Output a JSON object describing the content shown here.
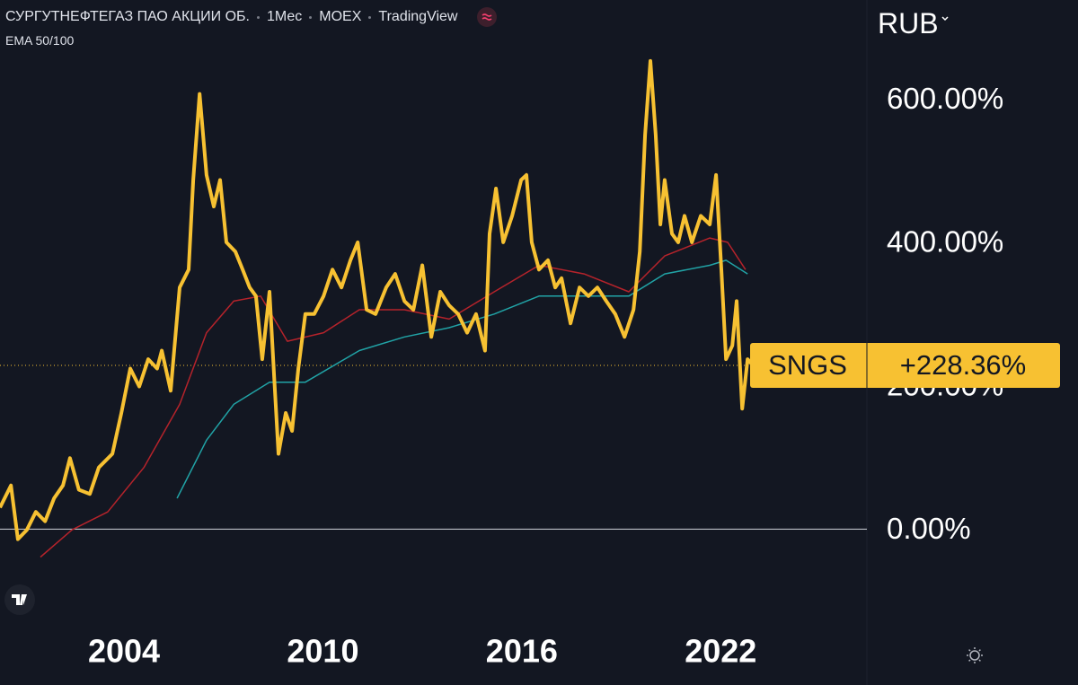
{
  "chart_data": {
    "type": "line",
    "title": "СУРГУТНЕФТЕГАЗ ПАО АКЦИИ ОБ.",
    "interval": "1Мес",
    "exchange": "MOEX",
    "source": "TradingView",
    "indicator": "EMA 50/100",
    "currency": "RUB",
    "xlim": [
      2000.26,
      2026.41
    ],
    "xticks": [
      2004,
      2010,
      2016,
      2022
    ],
    "ylim": [
      -126,
      738
    ],
    "yticks": [
      {
        "value": 0,
        "label": "0.00%"
      },
      {
        "value": 200,
        "label": "200.00%"
      },
      {
        "value": 400,
        "label": "400.00%"
      },
      {
        "value": 600,
        "label": "600.00%"
      }
    ],
    "grid": false,
    "series": [
      {
        "name": "SNGS",
        "color": "#f7c132",
        "width": 4,
        "x": [
          2000.26,
          2000.59,
          2000.8,
          2001.07,
          2001.34,
          2001.62,
          2001.89,
          2002.16,
          2002.37,
          2002.64,
          2002.97,
          2003.24,
          2003.65,
          2003.92,
          2004.19,
          2004.46,
          2004.73,
          2005.0,
          2005.14,
          2005.41,
          2005.68,
          2005.95,
          2006.09,
          2006.28,
          2006.49,
          2006.71,
          2006.9,
          2007.09,
          2007.36,
          2007.58,
          2007.79,
          2007.98,
          2008.17,
          2008.39,
          2008.53,
          2008.66,
          2008.88,
          2009.07,
          2009.26,
          2009.47,
          2009.74,
          2010.02,
          2010.29,
          2010.56,
          2010.83,
          2011.05,
          2011.32,
          2011.59,
          2011.91,
          2012.18,
          2012.46,
          2012.73,
          2013.0,
          2013.27,
          2013.54,
          2013.81,
          2014.08,
          2014.35,
          2014.62,
          2014.89,
          2015.03,
          2015.22,
          2015.44,
          2015.71,
          2015.98,
          2016.14,
          2016.3,
          2016.52,
          2016.79,
          2017.01,
          2017.2,
          2017.47,
          2017.74,
          2018.01,
          2018.28,
          2018.55,
          2018.82,
          2019.1,
          2019.37,
          2019.56,
          2019.72,
          2019.88,
          2020.04,
          2020.18,
          2020.31,
          2020.53,
          2020.72,
          2020.91,
          2021.13,
          2021.4,
          2021.67,
          2021.86,
          2022.02,
          2022.16,
          2022.35,
          2022.48,
          2022.65,
          2022.81,
          2022.97
        ],
        "values": [
          30,
          61,
          -14,
          -1,
          24,
          11,
          43,
          61,
          99,
          55,
          49,
          86,
          105,
          162,
          224,
          199,
          237,
          224,
          249,
          193,
          337,
          362,
          487,
          607,
          494,
          450,
          487,
          400,
          387,
          362,
          337,
          325,
          237,
          331,
          212,
          105,
          162,
          137,
          224,
          300,
          300,
          325,
          362,
          337,
          375,
          400,
          306,
          300,
          337,
          356,
          318,
          306,
          368,
          268,
          331,
          312,
          300,
          274,
          300,
          249,
          412,
          475,
          400,
          437,
          487,
          494,
          400,
          362,
          375,
          337,
          350,
          287,
          337,
          325,
          337,
          318,
          300,
          268,
          306,
          387,
          550,
          653,
          550,
          425,
          487,
          412,
          400,
          437,
          400,
          437,
          425,
          494,
          362,
          237,
          256,
          318,
          168,
          237,
          228.36
        ]
      },
      {
        "name": "EMA 50",
        "color": "#b5232b",
        "width": 1.5,
        "x": [
          2001.48,
          2002.43,
          2003.51,
          2004.6,
          2005.68,
          2006.49,
          2007.31,
          2008.12,
          2008.93,
          2010.02,
          2011.1,
          2012.46,
          2013.81,
          2015.17,
          2016.52,
          2017.88,
          2019.23,
          2020.31,
          2021.67,
          2022.21,
          2022.75
        ],
        "values": [
          -39,
          -1,
          24,
          86,
          174,
          274,
          318,
          325,
          262,
          274,
          306,
          306,
          293,
          331,
          368,
          356,
          331,
          381,
          406,
          400,
          362
        ]
      },
      {
        "name": "EMA 100",
        "color": "#21a3a6",
        "width": 1.5,
        "x": [
          2005.6,
          2006.49,
          2007.31,
          2008.39,
          2009.47,
          2011.1,
          2012.46,
          2013.81,
          2015.17,
          2016.52,
          2017.88,
          2019.23,
          2020.31,
          2021.67,
          2022.16,
          2022.81
        ],
        "values": [
          43,
          124,
          174,
          205,
          205,
          249,
          268,
          281,
          300,
          325,
          325,
          325,
          356,
          368,
          375,
          356
        ]
      }
    ],
    "last_value": {
      "name": "SNGS",
      "value": 228.36,
      "label": "+228.36%"
    }
  }
}
